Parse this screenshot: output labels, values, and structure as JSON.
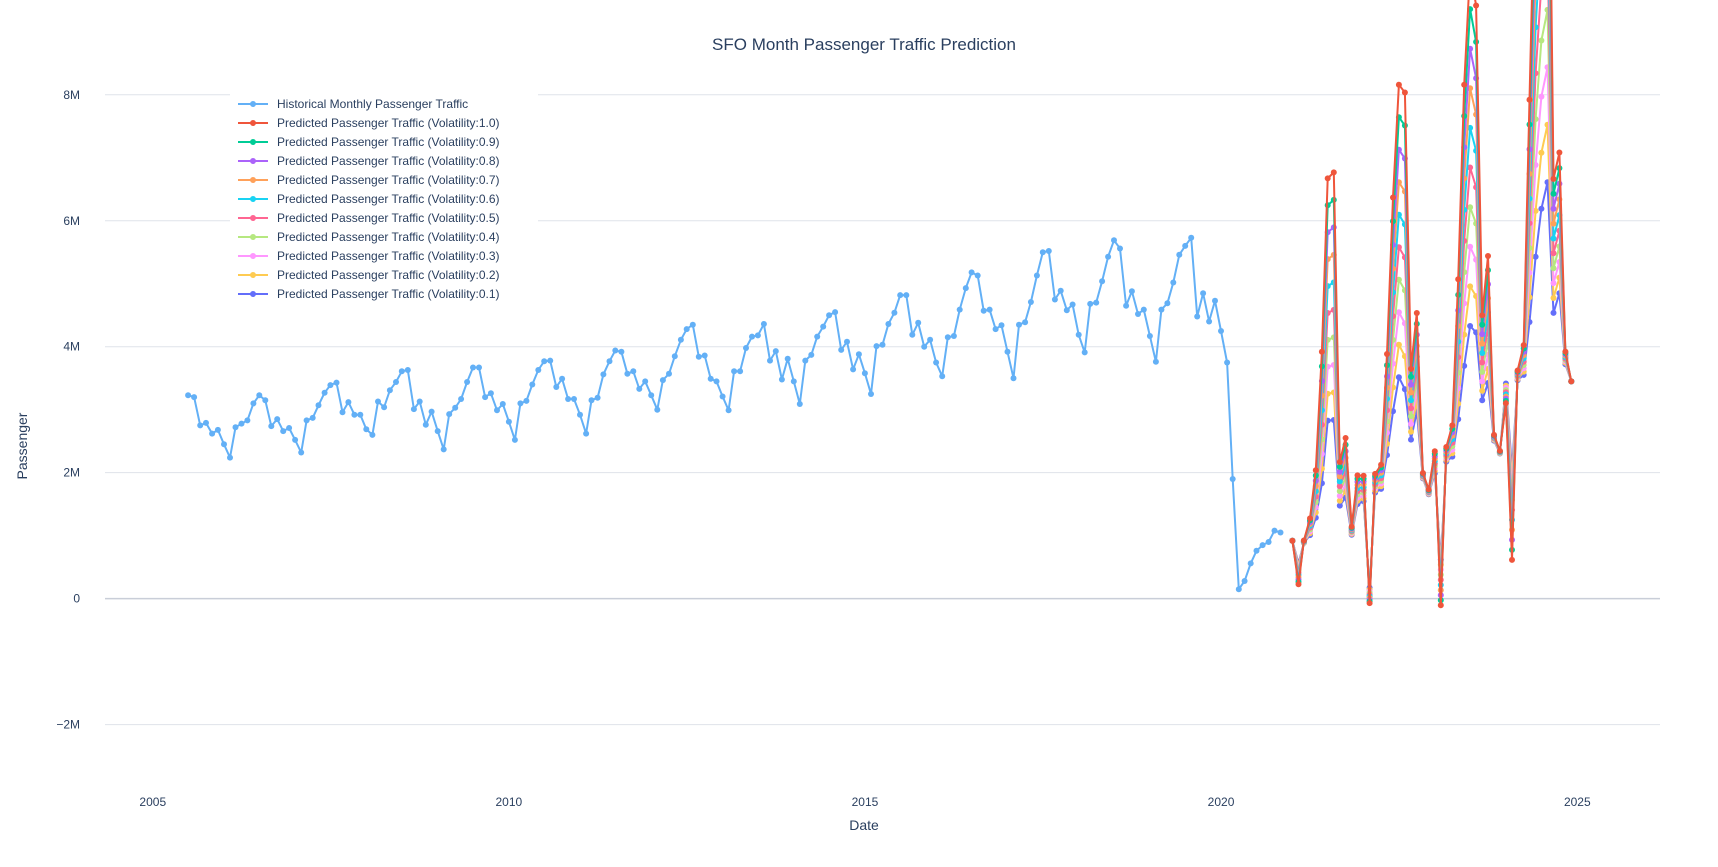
{
  "chart_data": {
    "type": "line",
    "title": "SFO Month Passenger Traffic Prediction",
    "xlabel": "Date",
    "ylabel": "Passenger",
    "xlim": [
      "2004-05-01",
      "2026-03-01"
    ],
    "ylim": [
      -2800000,
      8600000
    ],
    "x_ticks": [
      "2005",
      "2010",
      "2015",
      "2020",
      "2025"
    ],
    "y_ticks": [
      {
        "value": -2000000,
        "label": "−2M"
      },
      {
        "value": 0,
        "label": "0"
      },
      {
        "value": 2000000,
        "label": "2M"
      },
      {
        "value": 4000000,
        "label": "4M"
      },
      {
        "value": 6000000,
        "label": "6M"
      },
      {
        "value": 8000000,
        "label": "8M"
      }
    ],
    "grid": true,
    "legend_position": "top-left",
    "historical": {
      "name": "Historical Monthly Passenger Traffic",
      "color": "#63b0f6",
      "start": "2005-07",
      "values": [
        3230000,
        3200000,
        2750000,
        2790000,
        2620000,
        2680000,
        2450000,
        2240000,
        2720000,
        2780000,
        2830000,
        3100000,
        3230000,
        3150000,
        2740000,
        2850000,
        2660000,
        2710000,
        2520000,
        2320000,
        2830000,
        2870000,
        3070000,
        3270000,
        3390000,
        3430000,
        2960000,
        3120000,
        2920000,
        2920000,
        2690000,
        2600000,
        3130000,
        3040000,
        3310000,
        3440000,
        3610000,
        3630000,
        3010000,
        3130000,
        2760000,
        2970000,
        2660000,
        2370000,
        2930000,
        3030000,
        3170000,
        3440000,
        3670000,
        3670000,
        3200000,
        3260000,
        2990000,
        3090000,
        2810000,
        2520000,
        3100000,
        3140000,
        3400000,
        3630000,
        3770000,
        3780000,
        3360000,
        3490000,
        3170000,
        3170000,
        2920000,
        2620000,
        3150000,
        3190000,
        3560000,
        3770000,
        3940000,
        3920000,
        3570000,
        3610000,
        3330000,
        3450000,
        3230000,
        3000000,
        3470000,
        3570000,
        3850000,
        4110000,
        4280000,
        4350000,
        3840000,
        3860000,
        3490000,
        3450000,
        3210000,
        2990000,
        3610000,
        3610000,
        3980000,
        4160000,
        4180000,
        4360000,
        3780000,
        3930000,
        3480000,
        3810000,
        3450000,
        3090000,
        3780000,
        3870000,
        4160000,
        4320000,
        4500000,
        4550000,
        3950000,
        4080000,
        3640000,
        3880000,
        3580000,
        3250000,
        4010000,
        4030000,
        4360000,
        4540000,
        4820000,
        4820000,
        4190000,
        4380000,
        4000000,
        4110000,
        3750000,
        3530000,
        4150000,
        4170000,
        4590000,
        4930000,
        5180000,
        5130000,
        4570000,
        4590000,
        4280000,
        4340000,
        3920000,
        3500000,
        4350000,
        4390000,
        4710000,
        5130000,
        5500000,
        5520000,
        4750000,
        4890000,
        4580000,
        4670000,
        4190000,
        3910000,
        4680000,
        4700000,
        5040000,
        5430000,
        5690000,
        5560000,
        4650000,
        4880000,
        4520000,
        4590000,
        4170000,
        3760000,
        4590000,
        4690000,
        5020000,
        5460000,
        5600000,
        5730000,
        4480000,
        4850000,
        4400000,
        4730000,
        4250000,
        3750000,
        1900000,
        150000,
        280000,
        560000,
        760000,
        850000,
        900000,
        1080000,
        1050000
      ]
    },
    "forecast": {
      "start": "2021-01",
      "base": [
        920000,
        600000,
        880000,
        980000,
        1200000,
        1600000,
        2400000,
        2400000,
        1400000,
        1500000,
        1000000,
        1450000,
        1500000,
        200000,
        1650000,
        1700000,
        2100000,
        2600000,
        3000000,
        2800000,
        2400000,
        2800000,
        1900000,
        1650000,
        1950000,
        700000,
        2150000,
        2200000,
        2600000,
        3200000,
        3700000,
        3650000,
        3000000,
        3200000,
        2500000,
        2300000,
        3450000,
        2200000,
        3450000,
        3500000,
        4000000,
        4700000,
        5300000,
        5700000,
        4300000,
        4600000,
        3700000,
        3450000
      ],
      "dev": [
        0,
        -0.62,
        0.05,
        0.3,
        0.7,
        1.45,
        1.78,
        1.82,
        0.55,
        0.7,
        0.14,
        0.35,
        0.3,
        -1.35,
        0.2,
        0.25,
        0.85,
        1.45,
        1.72,
        1.87,
        0.52,
        0.62,
        0.05,
        0.05,
        0.2,
        -1.15,
        0.12,
        0.25,
        0.95,
        1.55,
        1.7,
        1.58,
        0.5,
        0.7,
        0.04,
        0.02,
        -0.1,
        -0.72,
        0.05,
        0.15,
        0.98,
        1.55,
        1.68,
        1.6,
        0.55,
        0.54,
        0.06,
        0
      ],
      "series": [
        {
          "name": "Predicted Passenger Traffic (Volatility:1.0)",
          "volatility": 1.0,
          "color": "#ef553b"
        },
        {
          "name": "Predicted Passenger Traffic (Volatility:0.9)",
          "volatility": 0.9,
          "color": "#00cc96"
        },
        {
          "name": "Predicted Passenger Traffic (Volatility:0.8)",
          "volatility": 0.8,
          "color": "#ab63fa"
        },
        {
          "name": "Predicted Passenger Traffic (Volatility:0.7)",
          "volatility": 0.7,
          "color": "#ffa15a"
        },
        {
          "name": "Predicted Passenger Traffic (Volatility:0.6)",
          "volatility": 0.6,
          "color": "#19d3f3"
        },
        {
          "name": "Predicted Passenger Traffic (Volatility:0.5)",
          "volatility": 0.5,
          "color": "#ff6692"
        },
        {
          "name": "Predicted Passenger Traffic (Volatility:0.4)",
          "volatility": 0.4,
          "color": "#b6e880"
        },
        {
          "name": "Predicted Passenger Traffic (Volatility:0.3)",
          "volatility": 0.3,
          "color": "#ff97ff"
        },
        {
          "name": "Predicted Passenger Traffic (Volatility:0.2)",
          "volatility": 0.2,
          "color": "#fecb52"
        },
        {
          "name": "Predicted Passenger Traffic (Volatility:0.1)",
          "volatility": 0.1,
          "color": "#636efa"
        }
      ]
    }
  }
}
